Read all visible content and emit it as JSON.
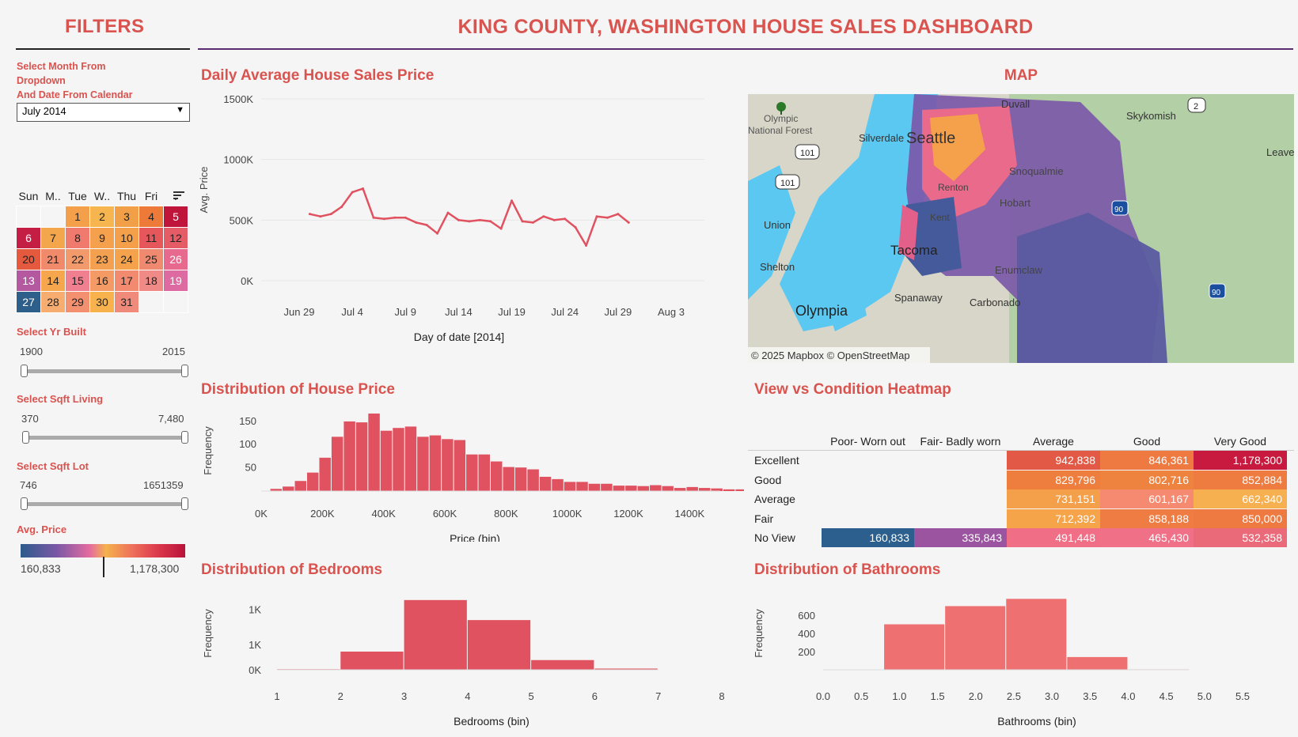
{
  "colors": {
    "accent": "#d9534f",
    "rule_purple": "#5b2c6f",
    "line": "#e05260",
    "bar": "#e05260",
    "bar_light": "#ee7070"
  },
  "filters": {
    "title": "FILTERS",
    "month_label": "Select Month From\nDropdown\nAnd Date From Calendar",
    "month_value": "July 2014",
    "calendar": {
      "headers": [
        "Sun",
        "M..",
        "Tue",
        "W..",
        "Thu",
        "Fri",
        ". "
      ],
      "rows": [
        [
          null,
          null,
          "1",
          "2",
          "3",
          "4",
          "5"
        ],
        [
          "6",
          "7",
          "8",
          "9",
          "10",
          "11",
          "12"
        ],
        [
          "20",
          "21",
          "22",
          "23",
          "24",
          "25",
          "26"
        ],
        [
          "13",
          "14",
          "15",
          "16",
          "17",
          "18",
          "19"
        ],
        [
          "27",
          "28",
          "29",
          "30",
          "31",
          null,
          null
        ]
      ],
      "colors": [
        [
          null,
          null,
          "#f4a04a",
          "#f6b54e",
          "#f2a047",
          "#ee7a3a",
          "#c0153a"
        ],
        [
          "#c41e45",
          "#f4a64c",
          "#f07a6e",
          "#f5a04c",
          "#f4a04a",
          "#e6575c",
          "#e65c66"
        ],
        [
          "#e55a3e",
          "#f08a6a",
          "#f29a6c",
          "#f3a050",
          "#f4a34c",
          "#ef8a70",
          "#e76a8e"
        ],
        [
          "#b458a0",
          "#f6a64c",
          "#f08090",
          "#f49a64",
          "#f28a70",
          "#f08a86",
          "#dd6aa0"
        ],
        [
          "#2e5e8a",
          "#f7ad70",
          "#f39070",
          "#f7b24e",
          "#f08a7a",
          null,
          null
        ]
      ]
    },
    "yr_built": {
      "label": "Select Yr Built",
      "min": "1900",
      "max": "2015"
    },
    "sqft_living": {
      "label": "Select Sqft Living",
      "min": "370",
      "max": "7,480"
    },
    "sqft_lot": {
      "label": "Select Sqft Lot",
      "min": "746",
      "max": "1651359"
    },
    "avg_price_legend": {
      "label": "Avg. Price",
      "min": "160,833",
      "max": "1,178,300"
    }
  },
  "dashboard_title": "KING COUNTY, WASHINGTON HOUSE SALES DASHBOARD",
  "map": {
    "title": "MAP",
    "attribution": "© 2025 Mapbox  © OpenStreetMap",
    "places": [
      "Duvall",
      "Skykomish",
      "Olympic\nNational Forest",
      "Silverdale",
      "Seattle",
      "Leave",
      "Snoqualmie",
      "Union",
      "Hobart",
      "Shelton",
      "Tacoma",
      "Enumclaw",
      "Olympia",
      "Spanaway",
      "Carbonado",
      "Kent",
      "Renton"
    ],
    "shields": [
      "101",
      "101",
      "2",
      "90",
      "90"
    ]
  },
  "chart_data": [
    {
      "id": "daily",
      "type": "line",
      "title": "Daily Average House Sales Price",
      "xlabel": "Day of date [2014]",
      "ylabel": "Avg. Price",
      "x_ticks": [
        "Jun 29",
        "Jul 4",
        "Jul 9",
        "Jul 14",
        "Jul 19",
        "Jul 24",
        "Jul 29",
        "Aug 3"
      ],
      "y_ticks": [
        "0K",
        "500K",
        "1000K",
        "1500K"
      ],
      "ylim": [
        0,
        1500000
      ],
      "x": [
        1,
        2,
        3,
        4,
        5,
        6,
        7,
        8,
        9,
        10,
        11,
        12,
        13,
        14,
        15,
        16,
        17,
        18,
        19,
        20,
        21,
        22,
        23,
        24,
        25,
        26,
        27,
        28,
        29,
        30,
        31
      ],
      "values": [
        550000,
        530000,
        550000,
        610000,
        730000,
        760000,
        520000,
        510000,
        520000,
        520000,
        480000,
        460000,
        390000,
        560000,
        500000,
        490000,
        500000,
        490000,
        430000,
        660000,
        490000,
        480000,
        530000,
        500000,
        510000,
        440000,
        290000,
        530000,
        520000,
        550000,
        480000
      ]
    },
    {
      "id": "price_hist",
      "type": "bar",
      "title": "Distribution of House Price",
      "xlabel": "Price (bin)",
      "ylabel": "Frequency",
      "x_ticks": [
        "0K",
        "200K",
        "400K",
        "600K",
        "800K",
        "1000K",
        "1200K",
        "1400K"
      ],
      "y_ticks": [
        "50",
        "100",
        "150"
      ],
      "ylim": [
        0,
        170
      ],
      "bin_start": 50000,
      "bin_width": 40000,
      "values": [
        3,
        8,
        20,
        38,
        70,
        115,
        148,
        146,
        165,
        128,
        134,
        137,
        115,
        118,
        110,
        108,
        77,
        77,
        62,
        50,
        49,
        45,
        29,
        24,
        18,
        18,
        14,
        14,
        10,
        10,
        9,
        11,
        9,
        5,
        7,
        5,
        4,
        2,
        2,
        2,
        0,
        0,
        2
      ]
    },
    {
      "id": "bedrooms",
      "type": "bar",
      "title": "Distribution of Bedrooms",
      "xlabel": "Bedrooms (bin)",
      "ylabel": "Frequency",
      "x_ticks": [
        "1",
        "2",
        "3",
        "4",
        "5",
        "6",
        "7",
        "8"
      ],
      "y_ticks": [
        "0K",
        "1K",
        "1K"
      ],
      "ylim": [
        0,
        1200
      ],
      "bins": [
        1,
        2,
        3,
        4,
        5,
        6
      ],
      "values": [
        10,
        300,
        1150,
        820,
        160,
        20
      ]
    },
    {
      "id": "bathrooms",
      "type": "bar",
      "title": "Distribution of Bathrooms",
      "xlabel": "Bathrooms (bin)",
      "ylabel": "Frequency",
      "x_ticks": [
        "0.0",
        "0.5",
        "1.0",
        "1.5",
        "2.0",
        "2.5",
        "3.0",
        "3.5",
        "4.0",
        "4.5",
        "5.0",
        "5.5"
      ],
      "y_ticks": [
        "200",
        "400",
        "600"
      ],
      "ylim": [
        0,
        800
      ],
      "bins": [
        0.8,
        1.6,
        2.4,
        3.2,
        4.0
      ],
      "values": [
        500,
        700,
        780,
        140,
        5
      ]
    },
    {
      "id": "heatmap",
      "type": "heatmap",
      "title": "View vs Condition Heatmap",
      "columns": [
        "Poor- Worn out",
        "Fair- Badly worn",
        "Average",
        "Good",
        "Very Good"
      ],
      "rows": [
        "Excellent",
        "Good",
        "Average",
        "Fair",
        "No View"
      ],
      "values": [
        [
          null,
          null,
          "942,838",
          "846,361",
          "1,178,300"
        ],
        [
          null,
          null,
          "829,796",
          "802,716",
          "852,884"
        ],
        [
          null,
          null,
          "731,151",
          "601,167",
          "662,340"
        ],
        [
          null,
          null,
          "712,392",
          "858,188",
          "850,000"
        ],
        [
          "160,833",
          "335,843",
          "491,448",
          "465,430",
          "532,358"
        ]
      ],
      "cell_colors": [
        [
          null,
          null,
          "#e25a45",
          "#ee7a42",
          "#c8193e"
        ],
        [
          null,
          null,
          "#ee7e3e",
          "#ee8340",
          "#ee7b40"
        ],
        [
          null,
          null,
          "#f4a04a",
          "#f58a70",
          "#f7b050"
        ],
        [
          null,
          null,
          "#f5a44a",
          "#ef7c42",
          "#ee7a42"
        ],
        [
          "#2c5f8d",
          "#9b55a0",
          "#f06e86",
          "#f07088",
          "#ea6a7a"
        ]
      ]
    }
  ]
}
